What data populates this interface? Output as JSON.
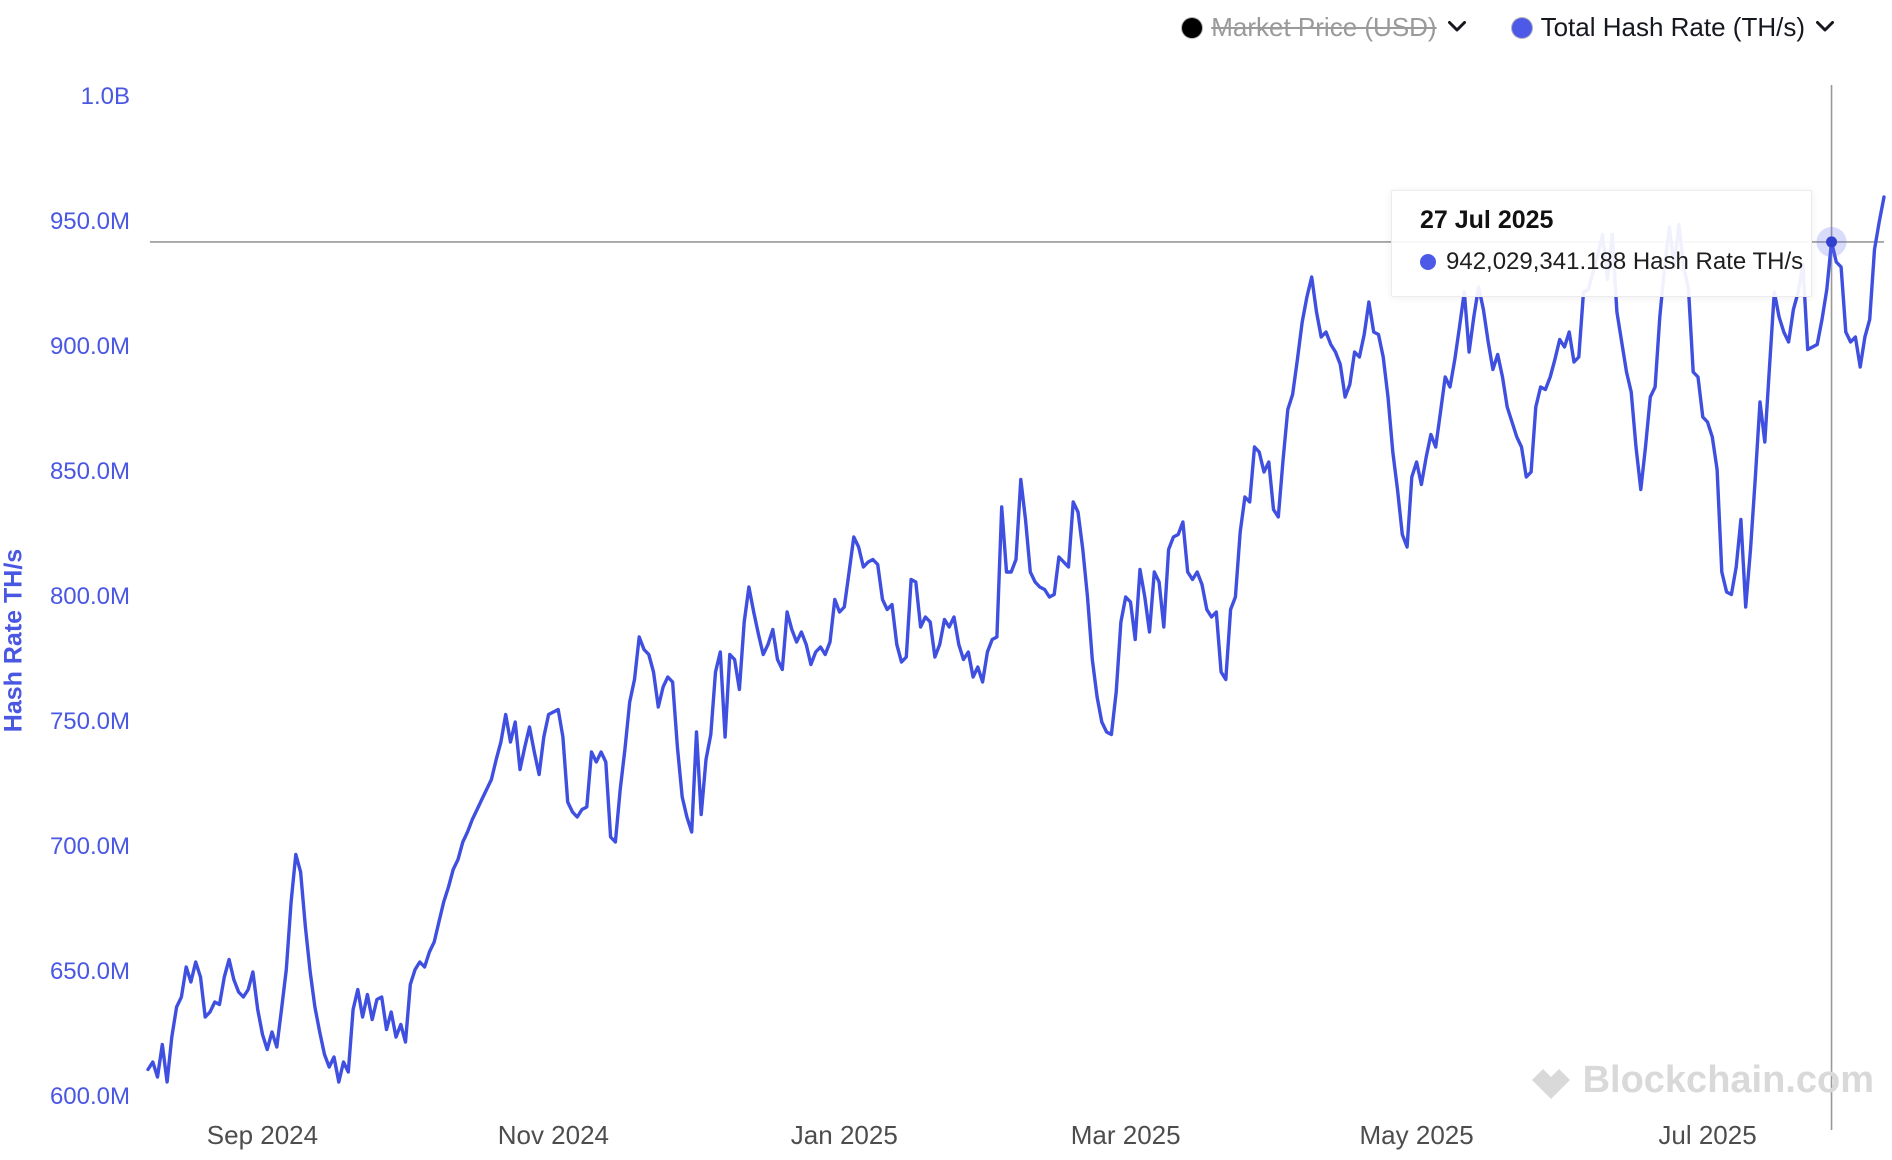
{
  "colors": {
    "line": "#3f4fe0",
    "axis_label_blue": "#4a57e3",
    "x_label_gray": "#4d4d4d",
    "crosshair_gray": "#999999",
    "marker_dot": "#3240cf",
    "marker_halo": "rgba(99,110,232,0.25)",
    "legend_black_dot": "#000000",
    "legend_blue_dot": "#4d5ae8",
    "legend_off_text": "#9a9a9a",
    "watermark_gray": "#d9d9d9",
    "background": "#ffffff"
  },
  "legend": {
    "items": [
      {
        "id": "market-price",
        "label": "Market Price (USD)",
        "dot_color": "#000000",
        "enabled": false
      },
      {
        "id": "hash-rate",
        "label": "Total Hash Rate (TH/s)",
        "dot_color": "#4d5ae8",
        "enabled": true
      }
    ]
  },
  "tooltip": {
    "title": "27 Jul 2025",
    "value": "942,029,341.188 Hash Rate TH/s"
  },
  "watermark": {
    "text": "Blockchain.com"
  },
  "chart_data": {
    "type": "line",
    "title": "",
    "xlabel": "",
    "ylabel": "Hash Rate TH/s",
    "grid": false,
    "legend_position": "top-right",
    "unit": "TH/s, values in millions",
    "y_range_m": [
      600,
      1000
    ],
    "y_ticks": [
      {
        "label": "1.0B",
        "value": 1000
      },
      {
        "label": "950.0M",
        "value": 950
      },
      {
        "label": "900.0M",
        "value": 900
      },
      {
        "label": "850.0M",
        "value": 850
      },
      {
        "label": "800.0M",
        "value": 800
      },
      {
        "label": "750.0M",
        "value": 750
      },
      {
        "label": "700.0M",
        "value": 700
      },
      {
        "label": "650.0M",
        "value": 650
      },
      {
        "label": "600.0M",
        "value": 600
      }
    ],
    "x_ticks": [
      {
        "label": "Sep 2024",
        "index": 24
      },
      {
        "label": "Nov 2024",
        "index": 85
      },
      {
        "label": "Jan 2025",
        "index": 146
      },
      {
        "label": "Mar 2025",
        "index": 205
      },
      {
        "label": "May 2025",
        "index": 266
      },
      {
        "label": "Jul 2025",
        "index": 327
      }
    ],
    "crosshair": {
      "index": 353,
      "value_m": 942.029341188,
      "date": "27 Jul 2025"
    },
    "series": [
      {
        "name": "Total Hash Rate (TH/s)",
        "start_date": "8 Aug 2024",
        "end_date": "7 Aug 2025",
        "frequency": "daily",
        "values_m": [
          611,
          614,
          608,
          621,
          606,
          624,
          636,
          640,
          652,
          646,
          654,
          648,
          632,
          634,
          638,
          637,
          648,
          655,
          647,
          642,
          640,
          643,
          650,
          635,
          625,
          619,
          626,
          620,
          635,
          651,
          678,
          697,
          690,
          668,
          650,
          636,
          626,
          617,
          612,
          616,
          606,
          614,
          610,
          635,
          643,
          632,
          641,
          631,
          639,
          640,
          627,
          634,
          624,
          629,
          622,
          645,
          651,
          654,
          652,
          658,
          662,
          670,
          678,
          684,
          691,
          695,
          702,
          706,
          711,
          715,
          719,
          723,
          727,
          735,
          742,
          753,
          742,
          750,
          731,
          740,
          748,
          738,
          729,
          744,
          753,
          754,
          755,
          744,
          718,
          714,
          712,
          715,
          716,
          738,
          734,
          738,
          734,
          704,
          702,
          723,
          739,
          758,
          767,
          784,
          779,
          777,
          770,
          756,
          764,
          768,
          766,
          740,
          720,
          712,
          706,
          746,
          713,
          735,
          745,
          770,
          778,
          744,
          777,
          775,
          763,
          790,
          804,
          794,
          785,
          777,
          781,
          787,
          775,
          771,
          794,
          787,
          782,
          786,
          781,
          773,
          778,
          780,
          777,
          782,
          799,
          794,
          796,
          810,
          824,
          820,
          812,
          814,
          815,
          813,
          799,
          795,
          797,
          781,
          774,
          776,
          807,
          806,
          788,
          792,
          790,
          776,
          781,
          791,
          788,
          792,
          781,
          775,
          778,
          768,
          772,
          766,
          778,
          783,
          784,
          836,
          810,
          810,
          815,
          847,
          831,
          810,
          806,
          804,
          803,
          800,
          801,
          816,
          814,
          812,
          838,
          834,
          819,
          800,
          775,
          760,
          750,
          746,
          745,
          762,
          790,
          800,
          798,
          783,
          811,
          800,
          786,
          810,
          806,
          788,
          819,
          824,
          825,
          830,
          810,
          807,
          810,
          805,
          795,
          792,
          794,
          770,
          767,
          795,
          800,
          826,
          840,
          838,
          860,
          858,
          850,
          854,
          835,
          832,
          855,
          875,
          881,
          895,
          910,
          920,
          928,
          914,
          904,
          906,
          901,
          898,
          893,
          880,
          885,
          898,
          896,
          905,
          918,
          906,
          905,
          896,
          880,
          858,
          843,
          825,
          820,
          848,
          854,
          845,
          856,
          865,
          860,
          874,
          888,
          884,
          895,
          908,
          922,
          898,
          912,
          924,
          915,
          902,
          891,
          897,
          888,
          876,
          870,
          864,
          860,
          848,
          850,
          876,
          884,
          883,
          888,
          895,
          903,
          900,
          906,
          894,
          896,
          922,
          923,
          930,
          937,
          945,
          927,
          945,
          914,
          902,
          890,
          882,
          860,
          843,
          860,
          880,
          884,
          912,
          932,
          948,
          932,
          949,
          932,
          923,
          890,
          888,
          872,
          870,
          864,
          851,
          810,
          802,
          801,
          812,
          831,
          796,
          819,
          847,
          878,
          862,
          892,
          922,
          912,
          906,
          902,
          915,
          922,
          933,
          899,
          900,
          901,
          911,
          923,
          942.029,
          934,
          932,
          906,
          902,
          904,
          892,
          904,
          911,
          939,
          950,
          960
        ]
      }
    ]
  }
}
